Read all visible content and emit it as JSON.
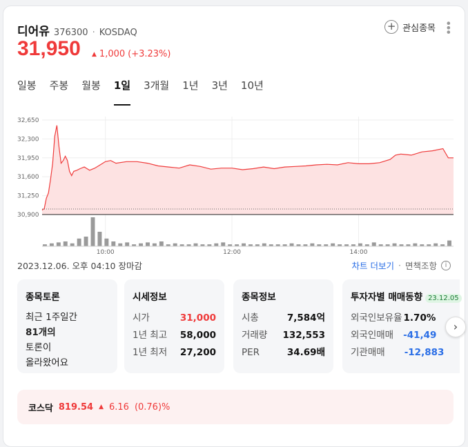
{
  "stock": {
    "name": "디어유",
    "code": "376300",
    "separator": "·",
    "market": "KOSDAQ",
    "price": "31,950",
    "change_arrow": "▲",
    "change_amount": "1,000",
    "change_pct": "(+3.23%)",
    "color_up": "#ef3a3a"
  },
  "favorite": {
    "icon": "plus-icon",
    "label": "관심종목"
  },
  "more_icon": "kebab-icon",
  "tabs": [
    {
      "label": "일봉"
    },
    {
      "label": "주봉"
    },
    {
      "label": "월봉"
    },
    {
      "label": "1일",
      "active": true
    },
    {
      "label": "3개월"
    },
    {
      "label": "1년"
    },
    {
      "label": "3년"
    },
    {
      "label": "10년"
    }
  ],
  "chart_data": {
    "type": "area",
    "y_ticks": [
      "32,650",
      "32,300",
      "31,950",
      "31,600",
      "31,250",
      "30,900"
    ],
    "y_tick_values": [
      32650,
      32300,
      31950,
      31600,
      31250,
      30900
    ],
    "ylim": [
      30900,
      32650
    ],
    "x_ticks": [
      "10:00",
      "12:00",
      "14:00"
    ],
    "x_tick_values": [
      60,
      180,
      300
    ],
    "x_range": [
      0,
      390
    ],
    "series": [
      {
        "x": [
          0,
          2,
          4,
          6,
          8,
          10,
          12,
          14,
          16,
          18,
          20,
          22,
          24,
          26,
          28,
          30,
          33,
          36,
          40,
          45,
          50,
          55,
          60,
          65,
          70,
          80,
          90,
          100,
          110,
          120,
          130,
          140,
          150,
          160,
          170,
          180,
          190,
          200,
          210,
          220,
          230,
          240,
          250,
          260,
          270,
          280,
          290,
          300,
          310,
          320,
          330,
          335,
          340,
          350,
          360,
          370,
          380,
          385,
          390
        ],
        "values": [
          30980,
          31010,
          31200,
          31300,
          31550,
          31850,
          32350,
          32550,
          32150,
          31850,
          31900,
          31980,
          31900,
          31700,
          31620,
          31700,
          31720,
          31750,
          31780,
          31720,
          31760,
          31820,
          31880,
          31900,
          31850,
          31880,
          31880,
          31850,
          31800,
          31780,
          31760,
          31820,
          31790,
          31740,
          31760,
          31760,
          31730,
          31750,
          31780,
          31750,
          31780,
          31790,
          31800,
          31820,
          31830,
          31820,
          31860,
          31840,
          31840,
          31860,
          31920,
          32000,
          32020,
          32000,
          32060,
          32080,
          32120,
          31950,
          31950
        ]
      }
    ],
    "volume": [
      2,
      3,
      4,
      5,
      3,
      8,
      10,
      30,
      15,
      8,
      5,
      3,
      4,
      2,
      3,
      4,
      3,
      5,
      2,
      3,
      2,
      2,
      3,
      2,
      2,
      3,
      4,
      2,
      2,
      3,
      2,
      2,
      3,
      2,
      2,
      2,
      3,
      2,
      2,
      3,
      2,
      2,
      3,
      2,
      2,
      2,
      3,
      2,
      4,
      2,
      2,
      3,
      2,
      2,
      3,
      2,
      2,
      3,
      2,
      6
    ],
    "grid": true,
    "line_color": "#ef3a3a",
    "fill_color": "#fde2e2"
  },
  "meta": {
    "timestamp": "2023.12.06. 오후 04:10 장마감",
    "chart_link": "차트 더보기",
    "sep": "·",
    "disclaimer": "면책조항",
    "info_icon": "info-icon"
  },
  "boxes": {
    "forum": {
      "title": "종목토론",
      "line1": "최근 1주일간",
      "count": "81개의",
      "line3": "토론이",
      "line4": "올라왔어요"
    },
    "quote": {
      "title": "시세정보",
      "rows": [
        {
          "label": "시가",
          "value": "31,000"
        },
        {
          "label": "1년 최고",
          "value": "58,000"
        },
        {
          "label": "1년 최저",
          "value": "27,200"
        }
      ]
    },
    "info": {
      "title": "종목정보",
      "rows": [
        {
          "label": "시총",
          "value": "7,584억"
        },
        {
          "label": "거래량",
          "value": "132,553"
        },
        {
          "label": "PER",
          "value": "34.69배"
        }
      ]
    },
    "investor": {
      "title": "투자자별 매매동향",
      "date": "23.12.05",
      "rows": [
        {
          "label": "외국인보유율",
          "value": "1.70%"
        },
        {
          "label": "외국인매매",
          "value": "-41,49"
        },
        {
          "label": "기관매매",
          "value": "-12,883"
        }
      ]
    }
  },
  "next_icon": "chevron-right-icon",
  "index": {
    "name": "코스닥",
    "value": "819.54",
    "arrow": "▲",
    "change": "6.16",
    "pct": "(0.76)%"
  }
}
